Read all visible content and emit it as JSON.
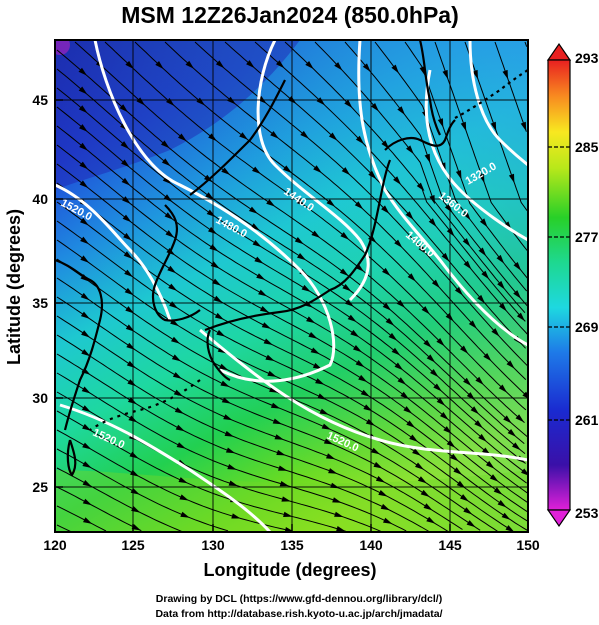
{
  "title": "MSM 12Z26Jan2024 (850.0hPa)",
  "xlabel": "Longitude (degrees)",
  "ylabel": "Latitude  (degrees)",
  "x_ticks": [
    "120",
    "125",
    "130",
    "135",
    "140",
    "145",
    "150"
  ],
  "y_ticks": [
    "25",
    "30",
    "35",
    "40",
    "45"
  ],
  "colorbar_ticks": [
    "293",
    "285",
    "277",
    "269",
    "261",
    "253"
  ],
  "contour_labels": [
    "1520.0",
    "1480.0",
    "1440.0",
    "1400.0",
    "1360.0",
    "1320.0",
    "1520.0",
    "1520.0"
  ],
  "credits": {
    "line1": "Drawing by DCL (https://www.gfd-dennou.org/library/dcl/)",
    "line2": "Data from http://database.rish.kyoto-u.ac.jp/arch/jmadata/"
  },
  "map": {
    "lon_range": [
      120,
      150
    ],
    "lat_range": [
      22.5,
      47.5
    ],
    "temperature_range_K": [
      253,
      293
    ],
    "grid": true,
    "field": "temperature (shaded), geopotential height (white contours), wind (streamlines)"
  },
  "colors": {
    "frame": "#000000",
    "contour": "#ffffff",
    "coast": "#000000",
    "colormap": [
      "#d81ed8",
      "#1a1aa8",
      "#1f5ae0",
      "#1fb0e0",
      "#1ed8c8",
      "#1ed878",
      "#3bd62a",
      "#a8e81a",
      "#f0e820",
      "#f08820",
      "#e02020"
    ]
  }
}
